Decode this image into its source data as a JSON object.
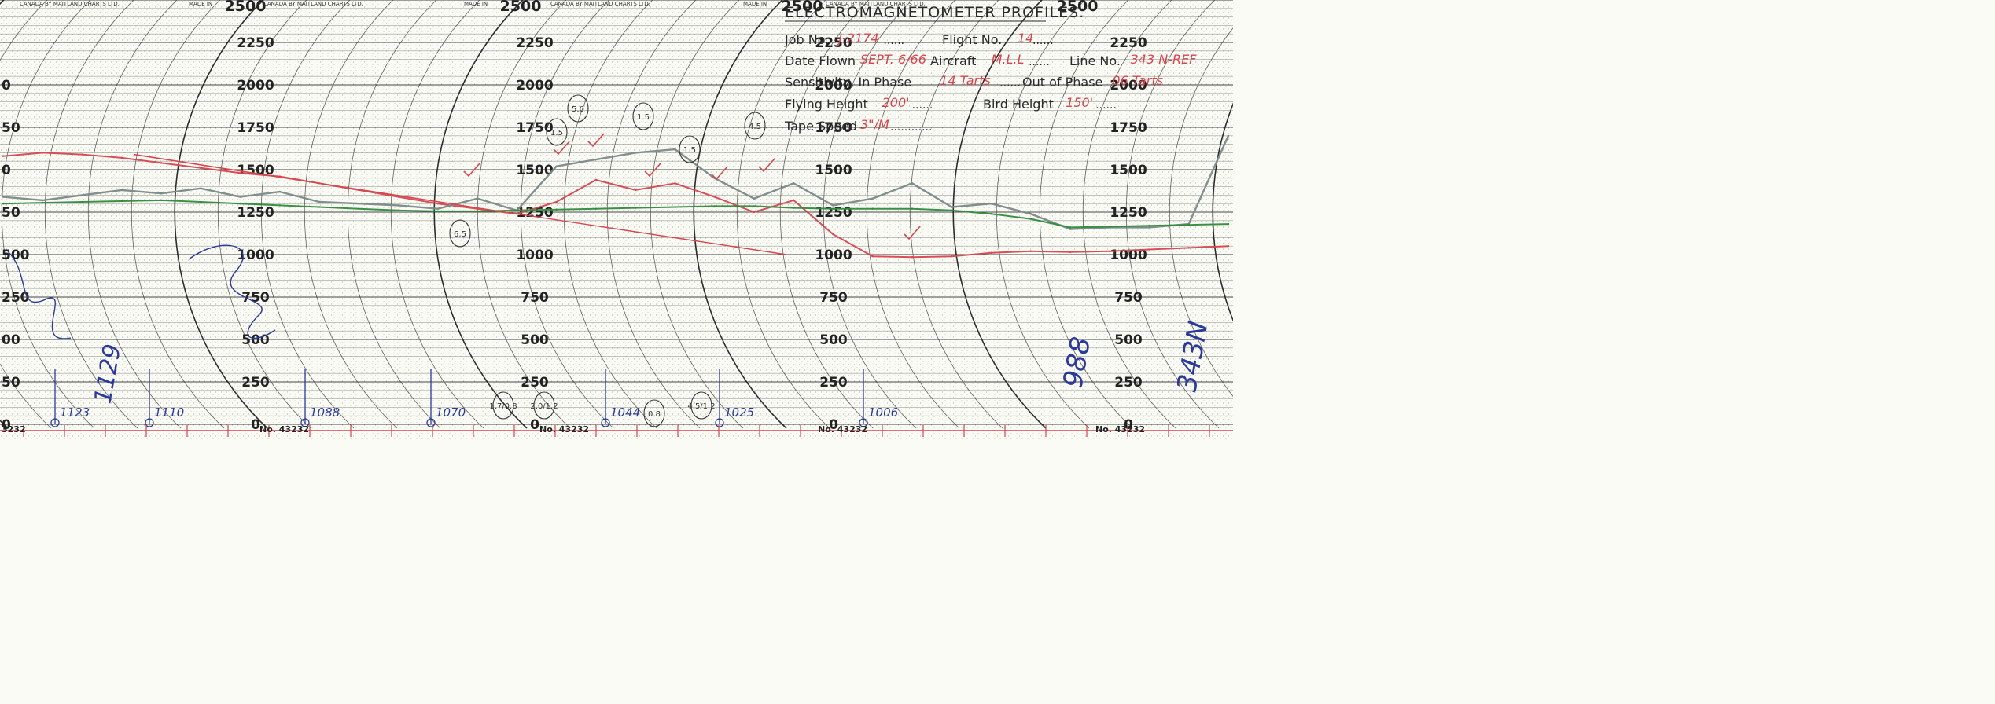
{
  "header": {
    "title": "ELECTROMAGNETOMETER PROFILES.",
    "maker_text": "CANADA BY MAITLAND CHARTS LTD.",
    "made_in": "MADE IN",
    "fields": [
      {
        "label": "Job No.",
        "value": "J-2174",
        "dots": "......"
      },
      {
        "label": "Flight No.",
        "value": "14",
        "dots": "......"
      },
      {
        "label": "Date Flown",
        "value": "SEPT. 6/66",
        "dots": ""
      },
      {
        "label": "Aircraft",
        "value": "M.L.L",
        "dots": "......"
      },
      {
        "label": "Line No.",
        "value": "343 N-REF",
        "dots": ""
      },
      {
        "label": "Sensitivity, In Phase",
        "value": "14 Tarts",
        "dots": "......"
      },
      {
        "label": "Out of Phase",
        "value": "06 Tarts",
        "dots": ""
      },
      {
        "label": "Flying Height",
        "value": "200'",
        "dots": "......"
      },
      {
        "label": "Bird Height",
        "value": "150'",
        "dots": "......"
      },
      {
        "label": "Tape Speed",
        "value": "3\"/M",
        "dots": "............"
      }
    ]
  },
  "chart_no": "No. 43232",
  "chart_no_partial": "3232",
  "chart_data": {
    "type": "line",
    "title": "ELECTROMAGNETOMETER PROFILES.",
    "ylim": [
      0,
      2500
    ],
    "y_ticks": [
      0,
      250,
      500,
      750,
      1000,
      1250,
      1500,
      1750,
      2000,
      2250,
      2500
    ],
    "y_tick_labels": [
      "0",
      "250",
      "500",
      "750",
      "1000",
      "1250",
      "1500",
      "1750",
      "2000",
      "2250",
      "2500"
    ],
    "partial_tick_labels": [
      "0",
      "250",
      "500",
      "750",
      "1000",
      "1250",
      "1500",
      "1750",
      "2000"
    ],
    "partial_tick_labels_visible": [
      "0",
      "50",
      "00",
      "250",
      "500",
      "50",
      "0",
      "50",
      "0"
    ],
    "x": [
      0,
      50,
      100,
      150,
      200,
      250,
      300,
      350,
      400,
      450,
      500,
      550,
      600,
      650,
      700,
      750,
      800,
      850,
      900,
      950,
      1000,
      1050,
      1100,
      1150,
      1200,
      1250,
      1300,
      1350,
      1400,
      1450,
      1500,
      1550
    ],
    "series": [
      {
        "color": "#d6464f",
        "values": [
          1580,
          1600,
          1590,
          1570,
          1540,
          1510,
          1480,
          1460,
          1420,
          1380,
          1340,
          1300,
          1270,
          1240,
          1310,
          1440,
          1380,
          1420,
          1340,
          1250,
          1320,
          1120,
          990,
          985,
          990,
          1010,
          1020,
          1015,
          1020,
          1030,
          1040,
          1050
        ]
      },
      {
        "color": "#7a8a88",
        "values": [
          1340,
          1320,
          1350,
          1380,
          1360,
          1390,
          1340,
          1370,
          1310,
          1300,
          1290,
          1270,
          1330,
          1260,
          1520,
          1560,
          1600,
          1620,
          1450,
          1330,
          1420,
          1290,
          1330,
          1420,
          1280,
          1300,
          1240,
          1150,
          1160,
          1160,
          1180,
          1700
        ]
      },
      {
        "color": "#2e8b3a",
        "values": [
          1300,
          1305,
          1310,
          1315,
          1320,
          1310,
          1300,
          1290,
          1280,
          1270,
          1260,
          1255,
          1255,
          1260,
          1265,
          1270,
          1275,
          1280,
          1285,
          1285,
          1275,
          1270,
          1270,
          1270,
          1260,
          1240,
          1210,
          1160,
          1165,
          1170,
          1175,
          1180
        ]
      }
    ]
  },
  "annotations": {
    "blue_numbers": [
      "1123",
      "1110",
      "1088",
      "1070",
      "1044",
      "1025",
      "1006"
    ],
    "blue_vertical_left": "1129",
    "blue_vertical_right_1": "988",
    "blue_vertical_right_2": "343N",
    "circled": [
      "6.5",
      "1.5",
      "5.0",
      "1.5",
      "1.5",
      "4.5",
      "4.5/1.2",
      "1.7/0.8",
      "2.0/1.2",
      "0.8"
    ]
  }
}
